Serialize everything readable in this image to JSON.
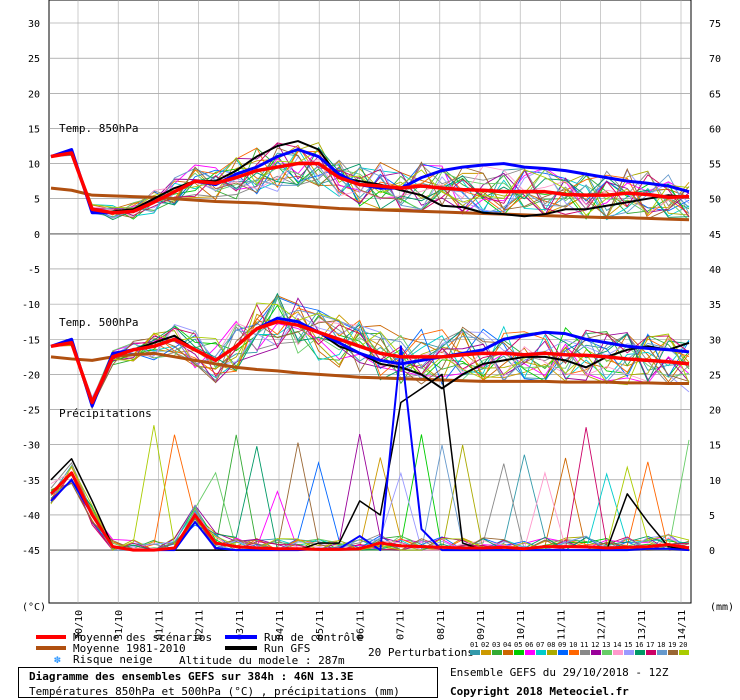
{
  "chart_data": {
    "type": "line",
    "title": "Diagramme des ensembles GEFS sur 384h : 46N 13.3E",
    "subtitle": "Températures 850hPa et 500hPa (°C) , précipitations (mm)",
    "dates": [
      "30/10",
      "31/10",
      "01/11",
      "02/11",
      "03/11",
      "04/11",
      "05/11",
      "06/11",
      "07/11",
      "08/11",
      "09/11",
      "10/11",
      "11/11",
      "12/11",
      "13/11",
      "14/11"
    ],
    "left_axis": {
      "ticks": [
        30,
        25,
        20,
        15,
        10,
        5,
        0,
        -5,
        -10,
        -15,
        -20,
        -25,
        -30,
        -35,
        -40,
        -45
      ],
      "unit": "(°C)"
    },
    "right_axis": {
      "ticks": [
        75,
        70,
        65,
        60,
        55,
        50,
        45,
        40,
        35,
        30,
        25,
        20,
        15,
        10,
        5,
        0
      ],
      "unit": "(mm)"
    },
    "panel_labels": {
      "t850": "Temp. 850hPa",
      "t500": "Temp. 500hPa",
      "precip": "Précipitations"
    },
    "series": {
      "t850": {
        "mean": [
          11,
          11.5,
          3.5,
          3,
          3.2,
          4.5,
          6,
          7.5,
          7.2,
          8,
          9,
          9.5,
          10,
          10,
          8,
          7,
          6.8,
          6.5,
          6.8,
          6.5,
          6.3,
          6.2,
          6,
          6,
          6,
          5.6,
          5.5,
          5.5,
          5.8,
          5.6,
          5.2,
          5.3
        ],
        "control": [
          11,
          12,
          3,
          3,
          3.2,
          4.5,
          6,
          7.5,
          7,
          8.5,
          9.5,
          11,
          12,
          11,
          8.5,
          7,
          6.5,
          6.5,
          8,
          9,
          9.5,
          9.8,
          10,
          9.5,
          9.3,
          9,
          8.5,
          8,
          7.5,
          7.2,
          6.8,
          6
        ],
        "gfs": [
          11,
          12,
          3,
          3.2,
          3.5,
          5,
          6.5,
          7.5,
          7.5,
          9,
          11,
          12.5,
          13.2,
          12,
          8,
          7.5,
          7,
          6.2,
          5.5,
          4,
          3.8,
          3,
          2.8,
          2.5,
          2.8,
          3.5,
          3.5,
          4,
          4.5,
          5,
          5.5,
          5.2
        ],
        "clim": [
          6.5,
          6.2,
          5.5,
          5.4,
          5.3,
          5.2,
          5,
          4.8,
          4.6,
          4.5,
          4.4,
          4.2,
          4,
          3.8,
          3.6,
          3.5,
          3.4,
          3.3,
          3.2,
          3.1,
          3,
          2.9,
          2.8,
          2.7,
          2.6,
          2.5,
          2.4,
          2.3,
          2.3,
          2.2,
          2.1,
          2
        ]
      },
      "t500": {
        "mean": [
          -16,
          -15.5,
          -24,
          -17.5,
          -16.5,
          -16,
          -15,
          -16.5,
          -18,
          -16,
          -13.5,
          -12.5,
          -13,
          -14,
          -15,
          -16,
          -17,
          -17.5,
          -17.5,
          -17.5,
          -17.2,
          -17,
          -17,
          -17.2,
          -17,
          -17.2,
          -17.3,
          -17.5,
          -17.8,
          -18,
          -18.2,
          -18.5
        ],
        "control": [
          -16,
          -15,
          -24.5,
          -17,
          -16.5,
          -16,
          -15,
          -16.5,
          -18,
          -16,
          -13.5,
          -12,
          -12.5,
          -14,
          -15.5,
          -17,
          -18,
          -18.5,
          -18,
          -17.5,
          -17,
          -16.5,
          -15,
          -14.5,
          -14,
          -14.2,
          -15,
          -15.5,
          -16,
          -16.3,
          -16.5,
          -16.8
        ],
        "gfs": [
          -16,
          -15,
          -24.5,
          -17,
          -16.5,
          -15.5,
          -14.5,
          -16.5,
          -18,
          -16,
          -13.5,
          -12,
          -12.5,
          -14,
          -16,
          -17,
          -18.5,
          -19,
          -20,
          -22,
          -20,
          -18.5,
          -18,
          -17.5,
          -17.5,
          -18,
          -19,
          -17.5,
          -16.5,
          -16,
          -16.5,
          -15.5
        ],
        "clim": [
          -17.5,
          -17.8,
          -18,
          -17.5,
          -17.2,
          -17,
          -17.5,
          -18,
          -18.5,
          -19,
          -19.3,
          -19.5,
          -19.8,
          -20,
          -20.2,
          -20.4,
          -20.5,
          -20.6,
          -20.7,
          -20.8,
          -20.9,
          -21,
          -21,
          -21,
          -21,
          -21.1,
          -21.1,
          -21.1,
          -21.2,
          -21.2,
          -21.3,
          -21.3
        ]
      },
      "precip": {
        "mean": [
          8,
          11,
          5,
          0.5,
          0,
          0,
          0.3,
          5,
          1,
          0.5,
          0.3,
          0.2,
          0.2,
          0.1,
          0.1,
          0.2,
          1,
          0.6,
          0.5,
          0.4,
          0.3,
          0.3,
          0.4,
          0.2,
          0.5,
          0.5,
          0.5,
          0.3,
          0.4,
          0.5,
          0.8,
          0.3
        ],
        "control": [
          7,
          10,
          5,
          0.5,
          0,
          0,
          0,
          4,
          0.3,
          0,
          0,
          0,
          0,
          0.2,
          0.2,
          2,
          0,
          29,
          3,
          0,
          0,
          0,
          0,
          0,
          0,
          0,
          0,
          0,
          0,
          0.2,
          0.2,
          0
        ],
        "gfs": [
          10,
          13,
          7,
          0.5,
          0,
          0,
          0,
          0,
          0,
          0,
          0,
          0,
          0,
          1,
          1,
          7,
          5,
          21,
          23,
          25,
          1,
          0,
          0,
          0,
          0,
          0,
          0,
          0,
          8,
          4,
          0.5,
          0
        ]
      }
    },
    "legend": {
      "mean": "Moyenne des scénarios",
      "clim": "Moyenne 1981-2010",
      "snow": "Risque neige",
      "control": "Run de contrôle",
      "gfs": "Run GFS",
      "altitude": "Altitude du modele : 287m",
      "perturbations": "20 Perturbations"
    },
    "perturbation_ids": [
      "01",
      "02",
      "03",
      "04",
      "05",
      "06",
      "07",
      "08",
      "09",
      "10",
      "11",
      "12",
      "13",
      "14",
      "15",
      "16",
      "17",
      "18",
      "19",
      "20"
    ],
    "colors": {
      "mean": "#ff0000",
      "control": "#0000ff",
      "gfs": "#000000",
      "clim": "#b05010",
      "perturbations": [
        "#3399aa",
        "#cc9900",
        "#33aa33",
        "#cc6600",
        "#00cc00",
        "#ff00ff",
        "#00cccc",
        "#aaaa00",
        "#0066ff",
        "#ff6600",
        "#888888",
        "#990099",
        "#66cc66",
        "#ff99cc",
        "#9999ff",
        "#009966",
        "#cc0066",
        "#6699cc",
        "#996633",
        "#aacc00"
      ]
    }
  },
  "footer": {
    "title": "Diagramme des ensembles GEFS sur 384h : 46N 13.3E",
    "subtitle": "Températures 850hPa et 500hPa (°C) , précipitations (mm)",
    "run": "Ensemble GEFS du 29/10/2018 - 12Z",
    "copyright": "Copyright 2018 Meteociel.fr"
  }
}
